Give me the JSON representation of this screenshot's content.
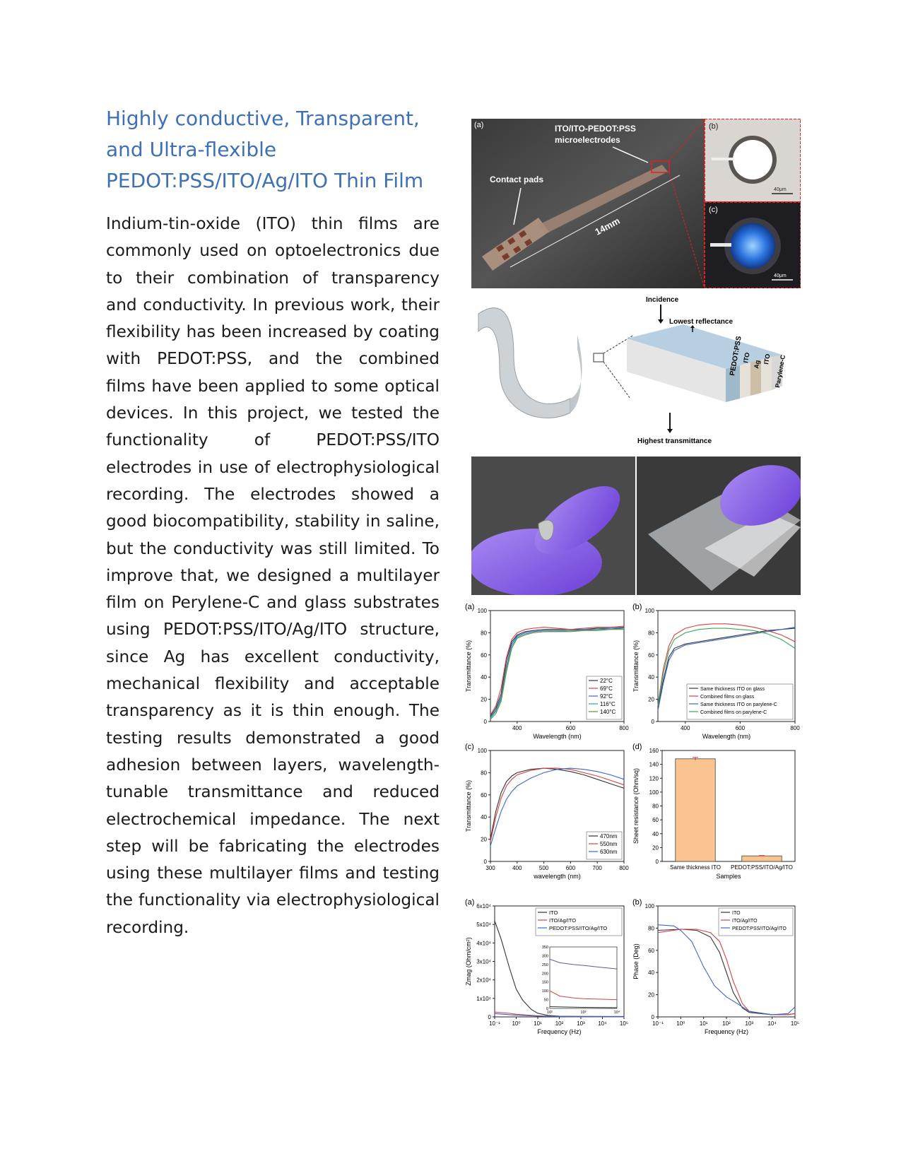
{
  "title": {
    "line1": "Highly conductive, Transparent,",
    "line2": "and Ultra-flexible",
    "line3": "PEDOT:PSS/ITO/Ag/ITO Thin Film"
  },
  "body": "Indium-tin-oxide (ITO) thin films are commonly used on optoelectronics due to their combination of transparency and conductivity. In previous work, their flexibility has been increased by coating with PEDOT:PSS, and the combined films have been applied to some optical devices. In this project, we tested the functionality of PEDOT:PSS/ITO electrodes in use of electrophysiological recording. The electrodes showed a good biocompatibility, stability in saline, but the conductivity was still limited. To improve that, we designed a multilayer film on Perylene-C and glass substrates using PEDOT:PSS/ITO/Ag/ITO structure, since Ag has excellent conductivity, mechanical flexibility and acceptable transparency as it is thin enough. The testing results demonstrated a good adhesion between layers, wavelength-tunable transmittance and reduced electrochemical impedance. The next step will be fabricating the electrodes using these multilayer films and testing the functionality via electrophysiological recording.",
  "figure1": {
    "panel_a": "(a)",
    "panel_b": "(b)",
    "panel_c": "(c)",
    "label_microelectrodes_1": "ITO/ITO-PEDOT:PSS",
    "label_microelectrodes_2": "microelectrodes",
    "label_contact_pads": "Contact pads",
    "label_length": "14mm",
    "scale_b": "40μm",
    "scale_c": "40μm"
  },
  "figure2": {
    "incidence": "Incidence",
    "lowest_reflectance": "Lowest reflectance",
    "highest_transmittance": "Highest transmittance",
    "layers": [
      "PEDOT:PSS",
      "ITO",
      "Ag",
      "ITO",
      "Parylene-C"
    ]
  },
  "chart_data": [
    {
      "panel": "(a)",
      "type": "line",
      "xlabel": "Wavelength (nm)",
      "ylabel": "Transmittance (%)",
      "xlim": [
        300,
        800
      ],
      "ylim": [
        0,
        100
      ],
      "xticks": [
        "400",
        "600",
        "800"
      ],
      "yticks": [
        "0",
        "20",
        "40",
        "60",
        "80",
        "100"
      ],
      "legend_position": "bottom-right",
      "series": [
        {
          "name": "22°C",
          "color": "#333333",
          "x": [
            300,
            320,
            340,
            360,
            380,
            400,
            430,
            460,
            500,
            550,
            600,
            650,
            700,
            750,
            800
          ],
          "y": [
            5,
            12,
            25,
            55,
            72,
            78,
            81,
            82,
            83,
            83,
            83,
            83,
            84,
            84,
            85
          ]
        },
        {
          "name": "69°C",
          "color": "#d94040",
          "x": [
            300,
            320,
            340,
            360,
            380,
            400,
            430,
            460,
            500,
            550,
            600,
            650,
            700,
            750,
            800
          ],
          "y": [
            6,
            14,
            30,
            58,
            74,
            80,
            83,
            84,
            85,
            84,
            83,
            84,
            85,
            85,
            86
          ]
        },
        {
          "name": "92°C",
          "color": "#3a66cc",
          "x": [
            300,
            320,
            340,
            360,
            380,
            400,
            430,
            460,
            500,
            550,
            600,
            650,
            700,
            750,
            800
          ],
          "y": [
            4,
            10,
            22,
            50,
            70,
            77,
            80,
            81,
            82,
            82,
            82,
            83,
            83,
            84,
            84
          ]
        },
        {
          "name": "116°C",
          "color": "#2aa6a6",
          "x": [
            300,
            320,
            340,
            360,
            380,
            400,
            430,
            460,
            500,
            550,
            600,
            650,
            700,
            750,
            800
          ],
          "y": [
            3,
            9,
            20,
            48,
            68,
            76,
            79,
            80,
            81,
            81,
            82,
            82,
            83,
            83,
            84
          ]
        },
        {
          "name": "140°C",
          "color": "#6a8f3a",
          "x": [
            300,
            320,
            340,
            360,
            380,
            400,
            430,
            460,
            500,
            550,
            600,
            650,
            700,
            750,
            800
          ],
          "y": [
            2,
            7,
            18,
            45,
            66,
            75,
            78,
            80,
            81,
            81,
            81,
            82,
            82,
            83,
            83
          ]
        }
      ]
    },
    {
      "panel": "(b)",
      "type": "line",
      "xlabel": "Wavelength (nm)",
      "ylabel": "Transmittance (%)",
      "xlim": [
        300,
        800
      ],
      "ylim": [
        0,
        100
      ],
      "xticks": [
        "400",
        "600",
        "800"
      ],
      "yticks": [
        "0",
        "20",
        "40",
        "60",
        "80",
        "100"
      ],
      "legend_position": "bottom-right",
      "series": [
        {
          "name": "Same thickness ITO on glass",
          "color": "#333333",
          "x": [
            300,
            320,
            340,
            360,
            400,
            450,
            500,
            550,
            600,
            650,
            700,
            750,
            800
          ],
          "y": [
            12,
            38,
            58,
            66,
            70,
            72,
            74,
            76,
            78,
            80,
            82,
            83,
            84
          ]
        },
        {
          "name": "Combined films on glass",
          "color": "#d94040",
          "x": [
            300,
            320,
            340,
            360,
            400,
            450,
            500,
            550,
            600,
            650,
            700,
            750,
            800
          ],
          "y": [
            15,
            48,
            68,
            78,
            84,
            87,
            88,
            88,
            87,
            85,
            82,
            78,
            72
          ]
        },
        {
          "name": "Same thickness ITO on parylene-C",
          "color": "#3a66cc",
          "x": [
            300,
            320,
            340,
            360,
            400,
            450,
            500,
            550,
            600,
            650,
            700,
            750,
            800
          ],
          "y": [
            10,
            35,
            55,
            64,
            69,
            71,
            73,
            75,
            77,
            79,
            81,
            83,
            85
          ]
        },
        {
          "name": "Combined films on parylene-C",
          "color": "#3aa65a",
          "x": [
            300,
            320,
            340,
            360,
            400,
            450,
            500,
            550,
            600,
            650,
            700,
            750,
            800
          ],
          "y": [
            14,
            44,
            64,
            74,
            80,
            83,
            84,
            84,
            83,
            82,
            79,
            74,
            66
          ]
        }
      ]
    },
    {
      "panel": "(c)",
      "type": "line",
      "xlabel": "wavelength (nm)",
      "ylabel": "Transmittance (%)",
      "xlim": [
        300,
        800
      ],
      "ylim": [
        0,
        100
      ],
      "xticks": [
        "300",
        "400",
        "500",
        "600",
        "700",
        "800"
      ],
      "yticks": [
        "0",
        "20",
        "40",
        "60",
        "80",
        "100"
      ],
      "legend_position": "bottom-right",
      "series": [
        {
          "name": "470nm",
          "color": "#333333",
          "x": [
            300,
            320,
            340,
            360,
            380,
            400,
            450,
            500,
            550,
            600,
            650,
            700,
            750,
            800
          ],
          "y": [
            20,
            45,
            62,
            72,
            77,
            80,
            83,
            84,
            83,
            81,
            78,
            74,
            70,
            66
          ]
        },
        {
          "name": "550nm",
          "color": "#d94040",
          "x": [
            300,
            320,
            340,
            360,
            380,
            400,
            450,
            500,
            550,
            600,
            650,
            700,
            750,
            800
          ],
          "y": [
            18,
            40,
            57,
            68,
            74,
            78,
            82,
            84,
            84,
            83,
            80,
            77,
            73,
            69
          ]
        },
        {
          "name": "630nm",
          "color": "#3a66cc",
          "x": [
            300,
            320,
            340,
            360,
            380,
            400,
            450,
            500,
            550,
            600,
            650,
            700,
            750,
            800
          ],
          "y": [
            14,
            30,
            45,
            56,
            63,
            68,
            75,
            80,
            83,
            84,
            83,
            81,
            78,
            74
          ]
        }
      ]
    },
    {
      "panel": "(d)",
      "type": "bar",
      "xlabel": "Samples",
      "ylabel": "Sheet resistance (Ohm/sq)",
      "ylim": [
        0,
        160
      ],
      "yticks": [
        "0",
        "20",
        "40",
        "60",
        "80",
        "100",
        "120",
        "140",
        "160"
      ],
      "categories": [
        "Same thickness ITO",
        "PEDOT:PSS/ITO/Ag/ITO"
      ],
      "values": [
        148,
        8
      ],
      "errors": [
        2,
        0.5
      ],
      "color": "#f9c48f"
    },
    {
      "panel": "(a)",
      "type": "line",
      "xlabel": "Frequency (Hz)",
      "ylabel": "Zmag (Ohm/cm²)",
      "xscale": "log",
      "xlim": [
        0.1,
        100000
      ],
      "ylim": [
        0,
        60000
      ],
      "xticks": [
        "10⁻¹",
        "10⁰",
        "10¹",
        "10²",
        "10³",
        "10⁴",
        "10⁵"
      ],
      "yticks": [
        "0",
        "1x10⁴",
        "2x10⁴",
        "3x10⁴",
        "4x10⁴",
        "5x10⁴",
        "6x10⁴"
      ],
      "legend_position": "top-right",
      "series": [
        {
          "name": "ITO",
          "color": "#333333",
          "x": [
            0.1,
            0.2,
            0.5,
            1,
            2,
            5,
            10,
            30,
            100,
            1000,
            100000
          ],
          "y": [
            52000,
            42000,
            26000,
            15000,
            9000,
            4000,
            2000,
            800,
            400,
            280,
            240
          ]
        },
        {
          "name": "ITO/Ag/ITO",
          "color": "#d94040",
          "x": [
            0.1,
            0.5,
            1,
            10,
            100,
            1000,
            100000
          ],
          "y": [
            2600,
            1900,
            1400,
            600,
            200,
            80,
            60
          ]
        },
        {
          "name": "PEDOT:PSS/ITO/Ag/ITO",
          "color": "#3a66cc",
          "x": [
            0.1,
            0.5,
            1,
            10,
            100,
            1000,
            100000
          ],
          "y": [
            1800,
            1200,
            900,
            400,
            150,
            70,
            50
          ]
        }
      ],
      "inset": {
        "xlim": [
          100,
          10000
        ],
        "ylim": [
          0,
          350
        ],
        "xticks": [
          "10²",
          "10³",
          "10⁴"
        ],
        "yticks": [
          "0",
          "50",
          "100",
          "150",
          "200",
          "250",
          "300",
          "350"
        ],
        "series": [
          {
            "name": "ITO",
            "color": "#333333",
            "x": [
              100,
              300,
              1000,
              3000,
              10000
            ],
            "y": [
              10,
              8,
              6,
              5,
              4
            ]
          },
          {
            "name": "ITO/Ag/ITO",
            "color": "#d94040",
            "x": [
              100,
              200,
              500,
              1000,
              10000
            ],
            "y": [
              100,
              70,
              60,
              55,
              50
            ]
          },
          {
            "name": "PEDOT:PSS/ITO/Ag/ITO",
            "color": "#5a5aaa",
            "x": [
              100,
              200,
              500,
              1000,
              3000,
              10000
            ],
            "y": [
              280,
              260,
              250,
              245,
              235,
              225
            ]
          }
        ]
      }
    },
    {
      "panel": "(b)",
      "type": "line",
      "xlabel": "Frequency (Hz)",
      "ylabel": "Phase (Deg)",
      "xscale": "log",
      "xlim": [
        0.1,
        100000
      ],
      "ylim": [
        0,
        100
      ],
      "xticks": [
        "10⁻¹",
        "10⁰",
        "10¹",
        "10²",
        "10³",
        "10⁴",
        "10⁵"
      ],
      "yticks": [
        "0",
        "20",
        "40",
        "60",
        "80",
        "100"
      ],
      "legend_position": "top-right",
      "series": [
        {
          "name": "ITO",
          "color": "#333333",
          "x": [
            0.1,
            1,
            5,
            20,
            50,
            100,
            200,
            500,
            1000,
            10000,
            50000,
            100000
          ],
          "y": [
            78,
            79,
            78,
            72,
            58,
            40,
            22,
            8,
            4,
            2,
            2,
            3
          ]
        },
        {
          "name": "ITO/Ag/ITO",
          "color": "#d94040",
          "x": [
            0.1,
            1,
            5,
            20,
            50,
            100,
            200,
            500,
            1000,
            10000,
            50000,
            100000
          ],
          "y": [
            76,
            79,
            79,
            76,
            68,
            52,
            32,
            12,
            5,
            2,
            2,
            3
          ]
        },
        {
          "name": "PEDOT:PSS/ITO/Ag/ITO",
          "color": "#3a66cc",
          "x": [
            0.1,
            0.5,
            1,
            3,
            10,
            30,
            100,
            300,
            1000,
            10000,
            50000,
            100000
          ],
          "y": [
            83,
            82,
            78,
            68,
            45,
            28,
            18,
            12,
            5,
            2,
            3,
            9
          ]
        }
      ]
    }
  ]
}
